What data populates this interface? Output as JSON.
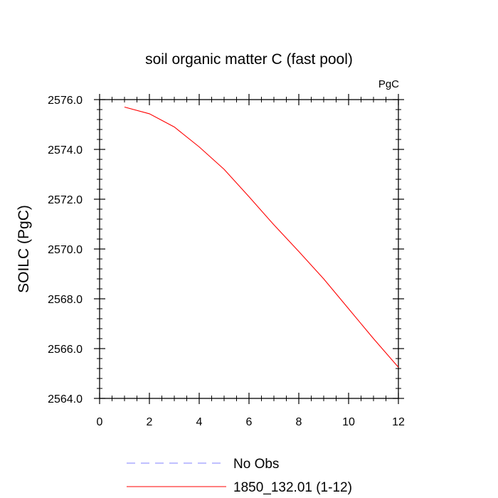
{
  "chart_data": {
    "type": "line",
    "title": "soil organic matter C (fast pool)",
    "units_label": "PgC",
    "ylabel": "SOILC  (PgC)",
    "xlabel": "",
    "xlim": [
      0,
      12
    ],
    "ylim": [
      2564.0,
      2576.0
    ],
    "x_ticks": [
      0,
      2,
      4,
      6,
      8,
      10,
      12
    ],
    "x_tick_labels": [
      "0",
      "2",
      "4",
      "6",
      "8",
      "10",
      "12"
    ],
    "y_ticks": [
      2564.0,
      2566.0,
      2568.0,
      2570.0,
      2572.0,
      2574.0,
      2576.0
    ],
    "y_tick_labels": [
      "2564.0",
      "2566.0",
      "2568.0",
      "2570.0",
      "2572.0",
      "2574.0",
      "2576.0"
    ],
    "grid": false,
    "legend_position": "bottom",
    "series": [
      {
        "name": "No Obs",
        "color": "#8080ff",
        "dash": "dashed",
        "x": [],
        "y": []
      },
      {
        "name": "1850_132.01 (1-12)",
        "color": "#ff0000",
        "dash": "solid",
        "x": [
          1,
          2,
          3,
          4,
          5,
          6,
          7,
          8,
          9,
          10,
          11,
          12
        ],
        "y": [
          2575.7,
          2575.43,
          2574.9,
          2574.1,
          2573.2,
          2572.1,
          2570.97,
          2569.9,
          2568.8,
          2567.6,
          2566.4,
          2565.25
        ]
      }
    ]
  }
}
